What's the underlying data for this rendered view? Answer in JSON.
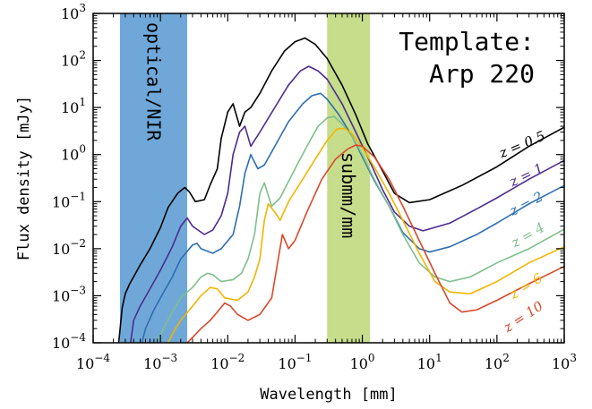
{
  "chart_data": {
    "type": "line",
    "xlabel": "Wavelength [mm]",
    "ylabel": "Flux density [mJy]",
    "xscale": "log",
    "yscale": "log",
    "xlim": [
      0.0001,
      1000
    ],
    "ylim": [
      0.0001,
      1000
    ],
    "xticks": [
      {
        "value": 0.0001,
        "base": "10",
        "exp": "−4"
      },
      {
        "value": 0.001,
        "base": "10",
        "exp": "−3"
      },
      {
        "value": 0.01,
        "base": "10",
        "exp": "−2"
      },
      {
        "value": 0.1,
        "base": "10",
        "exp": "−1"
      },
      {
        "value": 1,
        "base": "10",
        "exp": "0"
      },
      {
        "value": 10,
        "base": "10",
        "exp": "1"
      },
      {
        "value": 100,
        "base": "10",
        "exp": "2"
      },
      {
        "value": 1000,
        "base": "10",
        "exp": "3"
      }
    ],
    "yticks": [
      {
        "value": 0.0001,
        "base": "10",
        "exp": "−4"
      },
      {
        "value": 0.001,
        "base": "10",
        "exp": "−3"
      },
      {
        "value": 0.01,
        "base": "10",
        "exp": "−2"
      },
      {
        "value": 0.1,
        "base": "10",
        "exp": "−1"
      },
      {
        "value": 1,
        "base": "10",
        "exp": "0"
      },
      {
        "value": 10,
        "base": "10",
        "exp": "1"
      },
      {
        "value": 100,
        "base": "10",
        "exp": "2"
      },
      {
        "value": 1000,
        "base": "10",
        "exp": "3"
      }
    ],
    "annotation": {
      "line1": "Template:",
      "line2": "Arp 220"
    },
    "bands": [
      {
        "label": "optical/NIR",
        "x_range": [
          0.00025,
          0.0025
        ],
        "color": "#6fa8d8"
      },
      {
        "label": "submm/mm",
        "x_range": [
          0.3,
          1.3
        ],
        "color": "#c6dd8b"
      }
    ],
    "series": [
      {
        "name": "z = 0.5",
        "color": "#000000",
        "points": [
          [
            0.00024,
            0.0001
          ],
          [
            0.00027,
            0.00055
          ],
          [
            0.0003,
            0.0011
          ],
          [
            0.00035,
            0.0018
          ],
          [
            0.0005,
            0.0045
          ],
          [
            0.0007,
            0.01
          ],
          [
            0.001,
            0.028
          ],
          [
            0.0013,
            0.075
          ],
          [
            0.0018,
            0.15
          ],
          [
            0.0023,
            0.2
          ],
          [
            0.0027,
            0.16
          ],
          [
            0.0033,
            0.1
          ],
          [
            0.0045,
            0.11
          ],
          [
            0.0055,
            0.23
          ],
          [
            0.007,
            0.5
          ],
          [
            0.008,
            2.2
          ],
          [
            0.01,
            8
          ],
          [
            0.012,
            12
          ],
          [
            0.015,
            4
          ],
          [
            0.018,
            8
          ],
          [
            0.022,
            10
          ],
          [
            0.03,
            20
          ],
          [
            0.045,
            60
          ],
          [
            0.07,
            160
          ],
          [
            0.1,
            250
          ],
          [
            0.14,
            300
          ],
          [
            0.2,
            220
          ],
          [
            0.3,
            110
          ],
          [
            0.5,
            30
          ],
          [
            0.8,
            7
          ],
          [
            1.2,
            1.7
          ],
          [
            2,
            0.45
          ],
          [
            3,
            0.15
          ],
          [
            5,
            0.095
          ],
          [
            10,
            0.11
          ],
          [
            30,
            0.22
          ],
          [
            100,
            0.55
          ],
          [
            300,
            1.5
          ],
          [
            1000,
            3.8
          ]
        ]
      },
      {
        "name": "z = 1",
        "color": "#4b2c8f",
        "points": [
          [
            0.00036,
            0.0001
          ],
          [
            0.0004,
            0.0003
          ],
          [
            0.0005,
            0.0006
          ],
          [
            0.0007,
            0.0014
          ],
          [
            0.001,
            0.0035
          ],
          [
            0.0015,
            0.011
          ],
          [
            0.002,
            0.03
          ],
          [
            0.0025,
            0.045
          ],
          [
            0.003,
            0.03
          ],
          [
            0.0045,
            0.02
          ],
          [
            0.006,
            0.025
          ],
          [
            0.008,
            0.05
          ],
          [
            0.01,
            0.15
          ],
          [
            0.012,
            1
          ],
          [
            0.015,
            3
          ],
          [
            0.018,
            4
          ],
          [
            0.022,
            1.5
          ],
          [
            0.03,
            3
          ],
          [
            0.05,
            10
          ],
          [
            0.08,
            30
          ],
          [
            0.12,
            60
          ],
          [
            0.16,
            75
          ],
          [
            0.22,
            60
          ],
          [
            0.3,
            40
          ],
          [
            0.5,
            12
          ],
          [
            0.8,
            3
          ],
          [
            1.2,
            0.9
          ],
          [
            2,
            0.18
          ],
          [
            3,
            0.06
          ],
          [
            5,
            0.03
          ],
          [
            8,
            0.024
          ],
          [
            20,
            0.035
          ],
          [
            50,
            0.07
          ],
          [
            100,
            0.12
          ],
          [
            300,
            0.3
          ],
          [
            1000,
            0.75
          ]
        ]
      },
      {
        "name": "z = 2",
        "color": "#2d6eb0",
        "points": [
          [
            0.00053,
            0.0001
          ],
          [
            0.0006,
            0.0002
          ],
          [
            0.0008,
            0.0005
          ],
          [
            0.001,
            0.0009
          ],
          [
            0.0015,
            0.0025
          ],
          [
            0.002,
            0.006
          ],
          [
            0.003,
            0.012
          ],
          [
            0.0035,
            0.013
          ],
          [
            0.004,
            0.01
          ],
          [
            0.006,
            0.008
          ],
          [
            0.008,
            0.01
          ],
          [
            0.012,
            0.02
          ],
          [
            0.015,
            0.08
          ],
          [
            0.018,
            0.4
          ],
          [
            0.022,
            1
          ],
          [
            0.028,
            0.5
          ],
          [
            0.035,
            0.6
          ],
          [
            0.05,
            1.5
          ],
          [
            0.08,
            5
          ],
          [
            0.13,
            12
          ],
          [
            0.18,
            18
          ],
          [
            0.24,
            20
          ],
          [
            0.3,
            15
          ],
          [
            0.45,
            7
          ],
          [
            0.7,
            2.5
          ],
          [
            1,
            0.9
          ],
          [
            1.5,
            0.28
          ],
          [
            2.5,
            0.08
          ],
          [
            4,
            0.022
          ],
          [
            7,
            0.01
          ],
          [
            10,
            0.0085
          ],
          [
            20,
            0.011
          ],
          [
            50,
            0.02
          ],
          [
            100,
            0.035
          ],
          [
            300,
            0.09
          ],
          [
            1000,
            0.22
          ]
        ]
      },
      {
        "name": "z = 4",
        "color": "#7fbf8a",
        "points": [
          [
            0.0009,
            0.0001
          ],
          [
            0.001,
            0.00015
          ],
          [
            0.0015,
            0.00045
          ],
          [
            0.002,
            0.0009
          ],
          [
            0.003,
            0.0015
          ],
          [
            0.004,
            0.0025
          ],
          [
            0.005,
            0.003
          ],
          [
            0.006,
            0.0028
          ],
          [
            0.008,
            0.002
          ],
          [
            0.012,
            0.0022
          ],
          [
            0.016,
            0.003
          ],
          [
            0.02,
            0.006
          ],
          [
            0.025,
            0.02
          ],
          [
            0.03,
            0.15
          ],
          [
            0.035,
            0.25
          ],
          [
            0.045,
            0.08
          ],
          [
            0.06,
            0.12
          ],
          [
            0.1,
            0.5
          ],
          [
            0.15,
            1.5
          ],
          [
            0.22,
            4
          ],
          [
            0.3,
            6
          ],
          [
            0.38,
            6.5
          ],
          [
            0.5,
            4.5
          ],
          [
            0.7,
            2.5
          ],
          [
            1,
            1
          ],
          [
            1.5,
            0.3
          ],
          [
            2.5,
            0.08
          ],
          [
            4,
            0.02
          ],
          [
            7,
            0.005
          ],
          [
            12,
            0.0025
          ],
          [
            20,
            0.002
          ],
          [
            40,
            0.0025
          ],
          [
            100,
            0.005
          ],
          [
            300,
            0.01
          ],
          [
            1000,
            0.026
          ]
        ]
      },
      {
        "name": "z = 6",
        "color": "#f2b500",
        "points": [
          [
            0.0013,
            0.0001
          ],
          [
            0.0016,
            0.00018
          ],
          [
            0.002,
            0.0003
          ],
          [
            0.003,
            0.0006
          ],
          [
            0.004,
            0.001
          ],
          [
            0.0055,
            0.0015
          ],
          [
            0.007,
            0.0014
          ],
          [
            0.009,
            0.0009
          ],
          [
            0.014,
            0.0008
          ],
          [
            0.02,
            0.0012
          ],
          [
            0.025,
            0.0025
          ],
          [
            0.03,
            0.006
          ],
          [
            0.035,
            0.04
          ],
          [
            0.04,
            0.09
          ],
          [
            0.05,
            0.06
          ],
          [
            0.06,
            0.04
          ],
          [
            0.08,
            0.1
          ],
          [
            0.12,
            0.25
          ],
          [
            0.2,
            0.8
          ],
          [
            0.3,
            2
          ],
          [
            0.42,
            3.5
          ],
          [
            0.55,
            3.6
          ],
          [
            0.7,
            2.8
          ],
          [
            1,
            1.4
          ],
          [
            1.5,
            0.55
          ],
          [
            2.5,
            0.15
          ],
          [
            4,
            0.04
          ],
          [
            7,
            0.008
          ],
          [
            12,
            0.002
          ],
          [
            20,
            0.0012
          ],
          [
            40,
            0.0011
          ],
          [
            100,
            0.002
          ],
          [
            300,
            0.005
          ],
          [
            1000,
            0.011
          ]
        ]
      },
      {
        "name": "z = 10",
        "color": "#d9482b",
        "points": [
          [
            0.0025,
            0.0001
          ],
          [
            0.003,
            0.00013
          ],
          [
            0.004,
            0.0002
          ],
          [
            0.0055,
            0.0003
          ],
          [
            0.007,
            0.00045
          ],
          [
            0.009,
            0.0007
          ],
          [
            0.011,
            0.0006
          ],
          [
            0.014,
            0.0004
          ],
          [
            0.02,
            0.0003
          ],
          [
            0.03,
            0.0004
          ],
          [
            0.045,
            0.0009
          ],
          [
            0.055,
            0.005
          ],
          [
            0.065,
            0.02
          ],
          [
            0.08,
            0.01
          ],
          [
            0.1,
            0.015
          ],
          [
            0.15,
            0.06
          ],
          [
            0.25,
            0.3
          ],
          [
            0.4,
            0.8
          ],
          [
            0.6,
            1.3
          ],
          [
            0.8,
            1.6
          ],
          [
            1,
            1.5
          ],
          [
            1.5,
            0.9
          ],
          [
            2.5,
            0.3
          ],
          [
            4,
            0.08
          ],
          [
            7,
            0.015
          ],
          [
            12,
            0.003
          ],
          [
            20,
            0.0007
          ],
          [
            30,
            0.00045
          ],
          [
            50,
            0.0005
          ],
          [
            100,
            0.0008
          ],
          [
            300,
            0.0018
          ],
          [
            1000,
            0.0042
          ]
        ]
      }
    ]
  }
}
